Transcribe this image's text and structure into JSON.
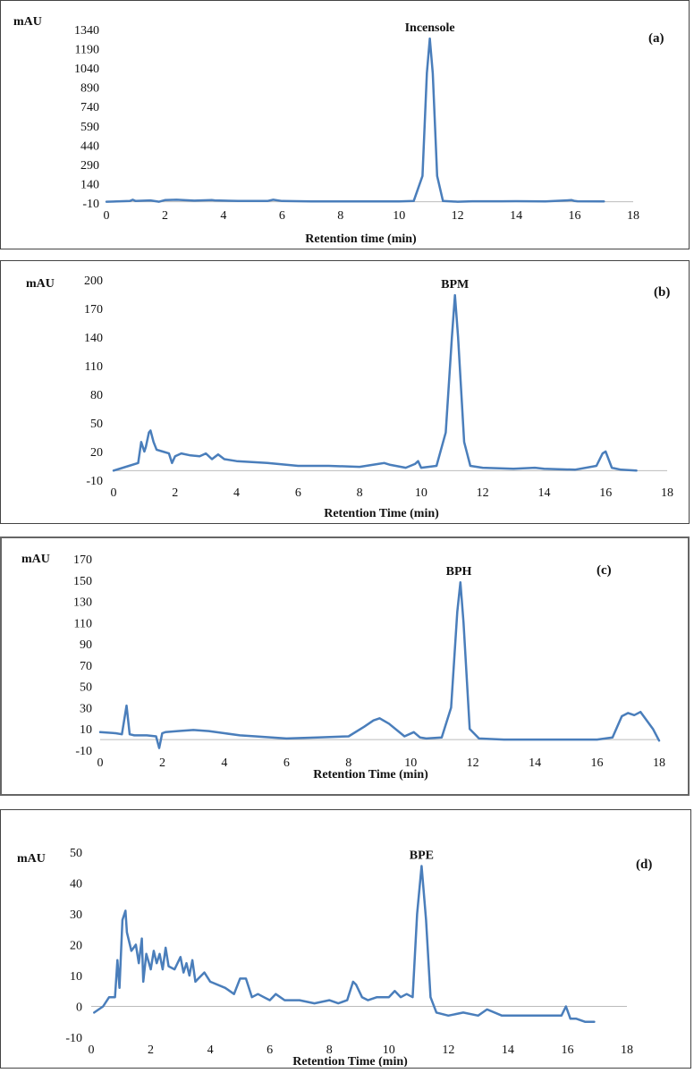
{
  "chart_data": [
    {
      "type": "line",
      "panel_label": "(a)",
      "ylabel": "mAU",
      "xlabel": "Retention time (min)",
      "y_ticks": [
        "-10",
        "140",
        "290",
        "440",
        "590",
        "740",
        "890",
        "1040",
        "1190",
        "1340"
      ],
      "x_ticks": [
        "0",
        "2",
        "4",
        "6",
        "8",
        "10",
        "12",
        "14",
        "16",
        "18"
      ],
      "ylim": [
        -10,
        1340
      ],
      "xlim": [
        0,
        18
      ],
      "annotations": [
        {
          "text": "Incensole",
          "x": 11.05,
          "y": 1270
        }
      ],
      "series": [
        {
          "x": [
            0,
            0.8,
            0.9,
            1.0,
            1.5,
            1.8,
            2.0,
            2.4,
            3.0,
            3.6,
            3.7,
            4.5,
            5.5,
            5.7,
            6.0,
            7,
            8,
            9,
            10,
            10.5,
            10.8,
            10.95,
            11.05,
            11.15,
            11.3,
            11.5,
            12,
            12.5,
            13.5,
            14,
            15,
            15.9,
            16.0,
            16.1,
            17
          ],
          "y": [
            0,
            5,
            15,
            5,
            10,
            0,
            12,
            15,
            8,
            12,
            10,
            5,
            5,
            15,
            5,
            2,
            2,
            2,
            2,
            5,
            200,
            1000,
            1270,
            1000,
            200,
            5,
            0,
            3,
            3,
            4,
            2,
            12,
            5,
            3,
            2
          ]
        }
      ]
    },
    {
      "type": "line",
      "panel_label": "(b)",
      "ylabel": "mAU",
      "xlabel": "Retention Time (min)",
      "y_ticks": [
        "-10",
        "20",
        "50",
        "80",
        "110",
        "140",
        "170",
        "200"
      ],
      "x_ticks": [
        "0",
        "2",
        "4",
        "6",
        "8",
        "10",
        "12",
        "14",
        "16",
        "18"
      ],
      "ylim": [
        -10,
        200
      ],
      "xlim": [
        0,
        18
      ],
      "annotations": [
        {
          "text": "BPM",
          "x": 11.1,
          "y": 184
        }
      ],
      "series": [
        {
          "x": [
            0,
            0.5,
            0.8,
            0.9,
            1.0,
            1.05,
            1.15,
            1.2,
            1.3,
            1.4,
            1.6,
            1.8,
            1.9,
            2.0,
            2.2,
            2.5,
            2.8,
            3.0,
            3.2,
            3.4,
            3.6,
            4.0,
            5,
            6,
            7,
            8,
            8.6,
            8.8,
            9,
            9.5,
            9.8,
            9.9,
            10.0,
            10.5,
            10.8,
            11.0,
            11.1,
            11.2,
            11.4,
            11.6,
            12,
            13,
            13.7,
            14,
            15,
            15.7,
            15.9,
            16.0,
            16.2,
            16.5,
            17
          ],
          "y": [
            0,
            5,
            8,
            30,
            20,
            25,
            40,
            42,
            30,
            22,
            20,
            18,
            8,
            15,
            18,
            16,
            15,
            18,
            12,
            17,
            12,
            10,
            8,
            5,
            5,
            4,
            7,
            8,
            6,
            3,
            7,
            10,
            3,
            5,
            40,
            140,
            184,
            140,
            30,
            5,
            3,
            2,
            3,
            2,
            1,
            5,
            18,
            20,
            3,
            1,
            0
          ]
        }
      ]
    },
    {
      "type": "line",
      "panel_label": "(c)",
      "ylabel": "mAU",
      "xlabel": "Retention Time (min)",
      "y_ticks": [
        "-10",
        "10",
        "30",
        "50",
        "70",
        "90",
        "110",
        "130",
        "150",
        "170"
      ],
      "x_ticks": [
        "0",
        "2",
        "4",
        "6",
        "8",
        "10",
        "12",
        "14",
        "16",
        "18"
      ],
      "ylim": [
        -10,
        170
      ],
      "xlim": [
        0,
        18
      ],
      "annotations": [
        {
          "text": "BPH",
          "x": 11.55,
          "y": 148
        }
      ],
      "series": [
        {
          "x": [
            0,
            0.5,
            0.7,
            0.85,
            0.95,
            1.1,
            1.5,
            1.8,
            1.9,
            2.0,
            2.1,
            2.5,
            3,
            3.5,
            4,
            4.5,
            5,
            6,
            7,
            8,
            8.5,
            8.8,
            9.0,
            9.3,
            9.8,
            10.1,
            10.3,
            10.5,
            11.0,
            11.3,
            11.5,
            11.6,
            11.7,
            11.9,
            12.2,
            13,
            14,
            15,
            16,
            16.5,
            16.8,
            17.0,
            17.2,
            17.4,
            17.8,
            18
          ],
          "y": [
            7,
            6,
            5,
            32,
            5,
            4,
            4,
            3,
            -8,
            6,
            7,
            8,
            9,
            8,
            6,
            4,
            3,
            1,
            2,
            3,
            12,
            18,
            20,
            15,
            3,
            7,
            2,
            1,
            2,
            30,
            120,
            148,
            110,
            10,
            1,
            0,
            0,
            0,
            0,
            2,
            22,
            25,
            23,
            26,
            10,
            -1
          ]
        }
      ]
    },
    {
      "type": "line",
      "panel_label": "(d)",
      "ylabel": "mAU",
      "xlabel": "Retention Time (min)",
      "y_ticks": [
        "-10",
        "0",
        "10",
        "20",
        "30",
        "40",
        "50"
      ],
      "x_ticks": [
        "0",
        "2",
        "4",
        "6",
        "8",
        "10",
        "12",
        "14",
        "16",
        "18"
      ],
      "ylim": [
        -10,
        50
      ],
      "xlim": [
        0,
        18
      ],
      "annotations": [
        {
          "text": "BPE",
          "x": 11.1,
          "y": 45.5
        }
      ],
      "series": [
        {
          "x": [
            0.1,
            0.4,
            0.6,
            0.8,
            0.88,
            0.95,
            1.05,
            1.15,
            1.2,
            1.35,
            1.5,
            1.6,
            1.7,
            1.75,
            1.85,
            2.0,
            2.1,
            2.2,
            2.3,
            2.4,
            2.5,
            2.6,
            2.8,
            3.0,
            3.1,
            3.2,
            3.3,
            3.4,
            3.5,
            3.6,
            3.8,
            4.0,
            4.5,
            4.8,
            5.0,
            5.2,
            5.4,
            5.6,
            5.8,
            6.0,
            6.2,
            6.5,
            7,
            7.5,
            8,
            8.3,
            8.6,
            8.8,
            8.9,
            9.1,
            9.3,
            9.6,
            10.0,
            10.2,
            10.4,
            10.6,
            10.8,
            10.95,
            11.1,
            11.25,
            11.4,
            11.6,
            12,
            12.5,
            13,
            13.3,
            13.8,
            14.3,
            15,
            15.5,
            15.8,
            15.95,
            16.1,
            16.3,
            16.6,
            16.9
          ],
          "y": [
            -2,
            0,
            3,
            3,
            15,
            6,
            28,
            31,
            24,
            18,
            20,
            14,
            22,
            8,
            17,
            12,
            18,
            14,
            17,
            12,
            19,
            13,
            12,
            16,
            11,
            14,
            10,
            15,
            8,
            9,
            11,
            8,
            6,
            4,
            9,
            9,
            3,
            4,
            3,
            2,
            4,
            2,
            2,
            1,
            2,
            1,
            2,
            8,
            7,
            3,
            2,
            3,
            3,
            5,
            3,
            4,
            3,
            30,
            45.5,
            28,
            3,
            -2,
            -3,
            -2,
            -3,
            -1,
            -3,
            -3,
            -3,
            -3,
            -3,
            0,
            -4,
            -4,
            -5,
            -5
          ]
        }
      ]
    }
  ]
}
